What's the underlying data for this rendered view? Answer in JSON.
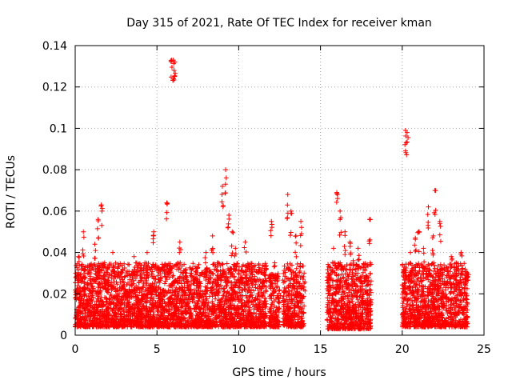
{
  "chart_data": {
    "type": "scatter",
    "title": "Day 315 of 2021, Rate Of TEC Index for receiver kman",
    "xlabel": "GPS time / hours",
    "ylabel": "ROTI / TECUs",
    "xlim": [
      0,
      25
    ],
    "ylim": [
      0,
      0.14
    ],
    "x_ticks": [
      0,
      5,
      10,
      15,
      20,
      25
    ],
    "x_tick_labels": [
      "0",
      "5",
      "10",
      "15",
      "20",
      "25"
    ],
    "y_ticks": [
      0,
      0.02,
      0.04,
      0.06,
      0.08,
      0.1,
      0.12,
      0.14
    ],
    "y_tick_labels": [
      "0",
      "0.02",
      "0.04",
      "0.06",
      "0.08",
      "0.1",
      "0.12",
      "0.14"
    ],
    "grid": true,
    "marker": "+",
    "color": "#ff0000",
    "series": [
      {
        "name": "ROTI",
        "note": "dense cloud of points sampled from the plot",
        "x": [
          0.1,
          0.2,
          0.3,
          0.5,
          0.6,
          0.8,
          1.0,
          1.2,
          1.4,
          1.6,
          1.8,
          2.0,
          2.3,
          2.6,
          3.0,
          3.3,
          3.6,
          4.0,
          4.4,
          4.8,
          5.2,
          5.6,
          5.9,
          6.0,
          6.1,
          6.4,
          6.8,
          7.2,
          7.6,
          8.0,
          8.4,
          8.7,
          9.0,
          9.2,
          9.4,
          9.6,
          9.8,
          10.0,
          10.4,
          10.8,
          11.2,
          11.6,
          12.0,
          12.2,
          12.5,
          13.0,
          13.2,
          13.5,
          13.8,
          14.0,
          15.5,
          15.8,
          16.0,
          16.2,
          16.5,
          16.8,
          17.0,
          17.3,
          17.6,
          18.0,
          20.2,
          20.3,
          20.5,
          20.8,
          21.0,
          21.3,
          21.6,
          21.9,
          22.0,
          22.3,
          22.6,
          23.0,
          23.3,
          23.6,
          24.0
        ],
        "y": [
          0.012,
          0.038,
          0.02,
          0.05,
          0.015,
          0.03,
          0.018,
          0.044,
          0.056,
          0.063,
          0.035,
          0.014,
          0.04,
          0.022,
          0.028,
          0.016,
          0.038,
          0.012,
          0.04,
          0.05,
          0.02,
          0.064,
          0.133,
          0.133,
          0.132,
          0.045,
          0.03,
          0.018,
          0.025,
          0.04,
          0.048,
          0.035,
          0.072,
          0.08,
          0.058,
          0.05,
          0.042,
          0.03,
          0.045,
          0.032,
          0.02,
          0.018,
          0.055,
          0.035,
          0.022,
          0.068,
          0.06,
          0.048,
          0.055,
          0.03,
          0.028,
          0.042,
          0.069,
          0.06,
          0.05,
          0.045,
          0.036,
          0.042,
          0.02,
          0.056,
          0.099,
          0.098,
          0.04,
          0.047,
          0.05,
          0.042,
          0.062,
          0.048,
          0.07,
          0.055,
          0.032,
          0.038,
          0.035,
          0.04,
          0.03
        ]
      }
    ],
    "density_segments": [
      {
        "x": [
          0,
          11.7
        ],
        "base": [
          0.004,
          0.035
        ]
      },
      {
        "x": [
          11.85,
          12.5
        ],
        "base": [
          0.004,
          0.03
        ]
      },
      {
        "x": [
          12.7,
          14.0
        ],
        "base": [
          0.004,
          0.035
        ]
      },
      {
        "x": [
          15.4,
          18.1
        ],
        "base": [
          0.003,
          0.035
        ]
      },
      {
        "x": [
          20.0,
          24.0
        ],
        "base": [
          0.004,
          0.035
        ]
      }
    ]
  }
}
